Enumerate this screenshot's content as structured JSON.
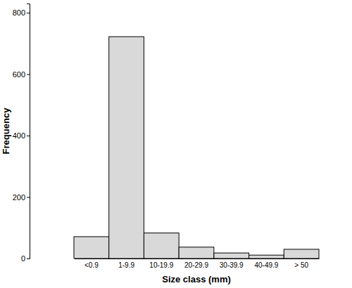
{
  "chart_data": {
    "type": "bar",
    "categories": [
      "<0.9",
      "1-9.9",
      "10-19.9",
      "20-29.9",
      "30-39.9",
      "40-49.9",
      "> 50"
    ],
    "values": [
      71,
      722,
      83,
      37,
      18,
      11,
      30
    ],
    "color": "#d9d9d9",
    "ylim": [
      0,
      830
    ],
    "yticks": [
      0,
      200,
      400,
      600,
      800
    ],
    "x_label": "Size class (mm)",
    "y_label": "Frequency",
    "grid": false
  }
}
